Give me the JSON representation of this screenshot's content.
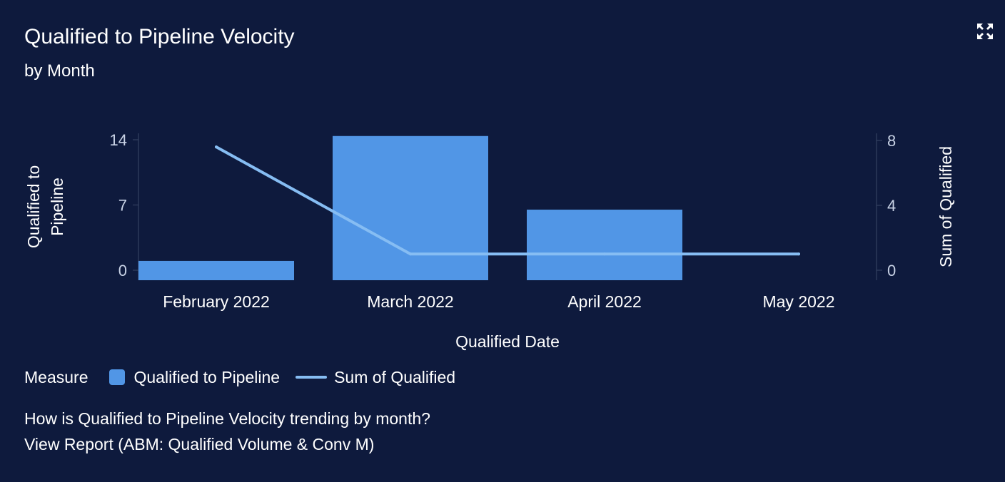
{
  "card": {
    "title": "Qualified to Pipeline Velocity",
    "subtitle": "by Month",
    "expand_icon": "expand-arrows-icon",
    "question": "How is Qualified to Pipeline Velocity trending by month?",
    "report_link": "View Report (ABM: Qualified Volume & Conv M)"
  },
  "legend": {
    "title": "Measure",
    "items": [
      {
        "label": "Qualified to Pipeline",
        "kind": "bar",
        "color": "#5196e6"
      },
      {
        "label": "Sum of Qualified",
        "kind": "line",
        "color": "#86bdf3"
      }
    ]
  },
  "colors": {
    "background": "#0e1a3d",
    "bar": "#5196e6",
    "line": "#86bdf3",
    "axis_text": "#c9d3e6",
    "axis_line": "#3a4868"
  },
  "chart_data": {
    "type": "bar",
    "categories": [
      "February 2022",
      "March 2022",
      "April 2022",
      "May 2022"
    ],
    "xlabel": "Qualified Date",
    "ylabel": "Qualified to Pipeline",
    "ylabel_lines": [
      "Qualified to",
      "Pipeline"
    ],
    "y2label": "Sum of Qualified",
    "ylim": [
      0,
      14
    ],
    "y2lim": [
      0,
      8
    ],
    "yticks": [
      0,
      7,
      14
    ],
    "y2ticks": [
      0,
      4,
      8
    ],
    "series": [
      {
        "name": "Qualified to Pipeline",
        "type": "bar",
        "axis": "left",
        "values": [
          1,
          14.4,
          6.5,
          0
        ]
      },
      {
        "name": "Sum of Qualified",
        "type": "line",
        "axis": "right",
        "values": [
          7.6,
          1,
          1,
          1
        ]
      }
    ],
    "legend_position": "bottom-left"
  }
}
